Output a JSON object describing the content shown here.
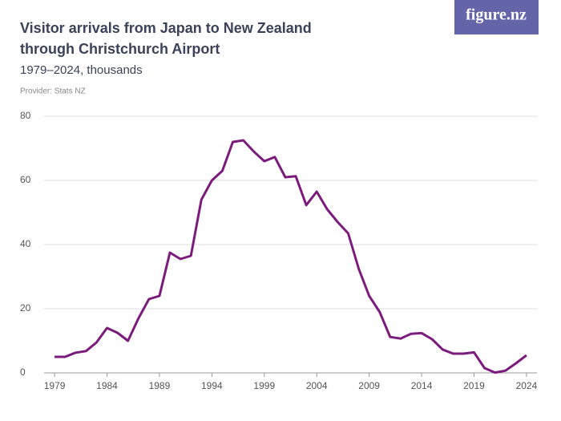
{
  "chart_data": {
    "type": "line",
    "title": "Visitor arrivals from Japan to New Zealand through Christchurch Airport",
    "subtitle": "1979–2024, thousands",
    "provider": "Provider: Stats NZ",
    "logo": "figure.nz",
    "x": [
      1979,
      1980,
      1981,
      1982,
      1983,
      1984,
      1985,
      1986,
      1987,
      1988,
      1989,
      1990,
      1991,
      1992,
      1993,
      1994,
      1995,
      1996,
      1997,
      1998,
      1999,
      2000,
      2001,
      2002,
      2003,
      2004,
      2005,
      2006,
      2007,
      2008,
      2009,
      2010,
      2011,
      2012,
      2013,
      2014,
      2015,
      2016,
      2017,
      2018,
      2019,
      2020,
      2021,
      2022,
      2023,
      2024
    ],
    "series": [
      {
        "name": "Visitor arrivals",
        "color": "#7b1c7c",
        "values": [
          5,
          5,
          6.3,
          6.8,
          9.5,
          14,
          12.5,
          10,
          17,
          23,
          24,
          37.5,
          35.5,
          36.5,
          54,
          60,
          63,
          72,
          72.5,
          69,
          66,
          67.3,
          61,
          61.3,
          52.3,
          56.5,
          51,
          47,
          43.5,
          32.5,
          24,
          19,
          11.2,
          10.7,
          12.2,
          12.4,
          10.5,
          7.3,
          6,
          6,
          6.4,
          1.5,
          0.1,
          0.7,
          3,
          5.5
        ]
      }
    ],
    "xlim": [
      1978,
      2025
    ],
    "xticks": [
      1979,
      1984,
      1989,
      1994,
      1999,
      2004,
      2009,
      2014,
      2019,
      2024
    ],
    "ylim": [
      0,
      80
    ],
    "yticks": [
      0,
      20,
      40,
      60,
      80
    ],
    "grid": true
  }
}
